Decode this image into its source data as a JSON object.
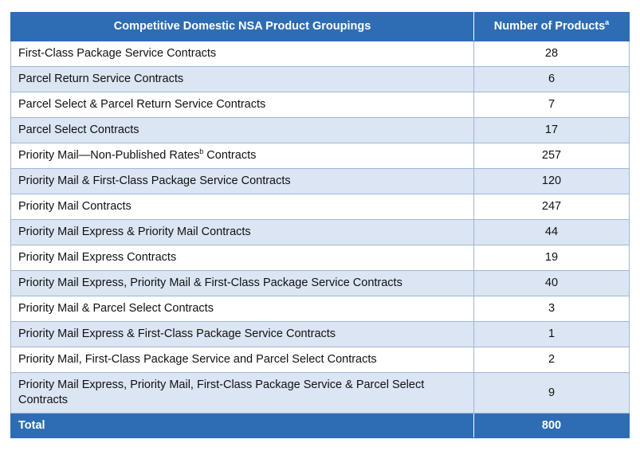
{
  "table": {
    "headers": {
      "groupings": "Competitive Domestic NSA Product Groupings",
      "count": "Number of Products",
      "count_footnote": "a"
    },
    "rows": [
      {
        "name": "First-Class Package Service Contracts",
        "value": "28"
      },
      {
        "name": "Parcel Return Service Contracts",
        "value": "6"
      },
      {
        "name": "Parcel Select & Parcel Return Service Contracts",
        "value": "7"
      },
      {
        "name": "Parcel Select Contracts",
        "value": "17"
      },
      {
        "name_before": "Priority Mail—Non-Published Rates",
        "footnote": "b",
        "name_after": " Contracts",
        "value": "257"
      },
      {
        "name": "Priority Mail & First-Class Package Service Contracts",
        "value": "120"
      },
      {
        "name": "Priority Mail Contracts",
        "value": "247"
      },
      {
        "name": "Priority Mail Express & Priority Mail Contracts",
        "value": "44"
      },
      {
        "name": "Priority Mail Express Contracts",
        "value": "19"
      },
      {
        "name": "Priority Mail Express, Priority Mail & First-Class Package Service Contracts",
        "value": "40"
      },
      {
        "name": "Priority Mail & Parcel Select Contracts",
        "value": "3"
      },
      {
        "name": "Priority Mail Express & First-Class Package Service Contracts",
        "value": "1"
      },
      {
        "name": "Priority Mail, First-Class Package Service and Parcel Select Contracts",
        "value": "2"
      },
      {
        "name": "Priority Mail Express, Priority Mail, First-Class Package Service & Parcel Select Contracts",
        "value": "9"
      }
    ],
    "total": {
      "label": "Total",
      "value": "800"
    }
  },
  "colors": {
    "header_bg": "#2e6db4",
    "stripe_bg": "#dbe5f3",
    "border": "#9fb7d6"
  }
}
